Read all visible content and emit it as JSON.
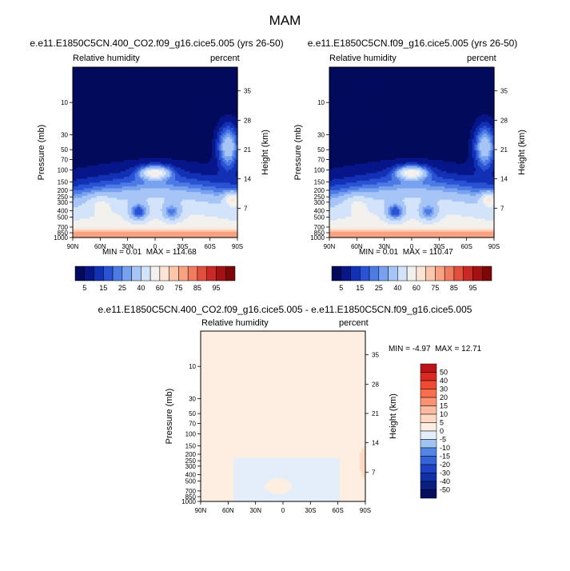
{
  "figure": {
    "season_title": "MAM"
  },
  "colors": {
    "pos": [
      "#feeee2",
      "#fdd9c4",
      "#fcbba1",
      "#fc9272",
      "#f96e4f",
      "#f04a34",
      "#db2a22",
      "#bb151a",
      "#960c12",
      "#6e0508"
    ],
    "neg": [
      "#e3eefa",
      "#c2daf6",
      "#9ec4f2",
      "#7aa8ee",
      "#5585e4",
      "#3563d8",
      "#1f42c7",
      "#1230a5",
      "#0a1f82",
      "#040f5e"
    ],
    "near_zero": "#f8f8f8",
    "low_rh": [
      "#020a5c",
      "#07178a",
      "#1331b4",
      "#2a52d4",
      "#4c7be4",
      "#78a2ef",
      "#a6c4f5",
      "#d2e3fa",
      "#f3f1ee",
      "#fde4d3",
      "#fbc6ab",
      "#f7a282",
      "#f07c60",
      "#e24f3c",
      "#c92a25",
      "#a51113",
      "#7d0607"
    ]
  },
  "chart_data": [
    {
      "type": "heatmap",
      "title": "e.e11.E1850C5CN.400_CO2.f09_g16.cice5.005 (yrs 26-50)",
      "left_subtitle": "Relative humidity",
      "right_subtitle": "percent",
      "ylabel": "Pressure (mb)",
      "ylabel_right": "Height (km)",
      "x_ticks": [
        "90N",
        "60N",
        "30N",
        "0",
        "30S",
        "60S",
        "90S"
      ],
      "y_ticks": [
        "10",
        "30",
        "50",
        "70",
        "100",
        "150",
        "200",
        "250",
        "300",
        "400",
        "500",
        "700",
        "850",
        "1000"
      ],
      "y_right_ticks": [
        "35",
        "28",
        "21",
        "14",
        "7"
      ],
      "min_label": "MIN =",
      "min": "0.01",
      "max_label": "MAX =",
      "max": "114.68",
      "colorbar_labels": [
        "5",
        "15",
        "25",
        "40",
        "60",
        "75",
        "85",
        "95"
      ]
    },
    {
      "type": "heatmap",
      "title": "e.e11.E1850C5CN.f09_g16.cice5.005 (yrs 26-50)",
      "left_subtitle": "Relative humidity",
      "right_subtitle": "percent",
      "ylabel": "Pressure (mb)",
      "ylabel_right": "Height (km)",
      "x_ticks": [
        "90N",
        "60N",
        "30N",
        "0",
        "30S",
        "60S",
        "90S"
      ],
      "y_ticks": [
        "10",
        "30",
        "50",
        "70",
        "100",
        "150",
        "200",
        "250",
        "300",
        "400",
        "500",
        "700",
        "850",
        "1000"
      ],
      "y_right_ticks": [
        "35",
        "28",
        "21",
        "14",
        "7"
      ],
      "min_label": "MIN =",
      "min": "0.01",
      "max_label": "MAX =",
      "max": "110.47",
      "colorbar_labels": [
        "5",
        "15",
        "25",
        "40",
        "60",
        "75",
        "85",
        "95"
      ]
    },
    {
      "type": "heatmap",
      "title": "e.e11.E1850C5CN.400_CO2.f09_g16.cice5.005 - e.e11.E1850C5CN.f09_g16.cice5.005",
      "left_subtitle": "Relative humidity",
      "right_subtitle": "percent",
      "ylabel": "Pressure (mb)",
      "ylabel_right": "Height (km)",
      "x_ticks": [
        "90N",
        "60N",
        "30N",
        "0",
        "30S",
        "60S",
        "90S"
      ],
      "y_ticks": [
        "10",
        "30",
        "50",
        "70",
        "100",
        "150",
        "200",
        "250",
        "300",
        "400",
        "500",
        "700",
        "850",
        "1000"
      ],
      "y_right_ticks": [
        "35",
        "28",
        "21",
        "14",
        "7"
      ],
      "min_label": "MIN =",
      "min": "-4.97",
      "max_label": "MAX =",
      "max": "12.71",
      "colorbar_labels": [
        "50",
        "40",
        "30",
        "20",
        "15",
        "10",
        "5",
        "0",
        "-5",
        "-10",
        "-15",
        "-20",
        "-30",
        "-40",
        "-50"
      ]
    }
  ]
}
